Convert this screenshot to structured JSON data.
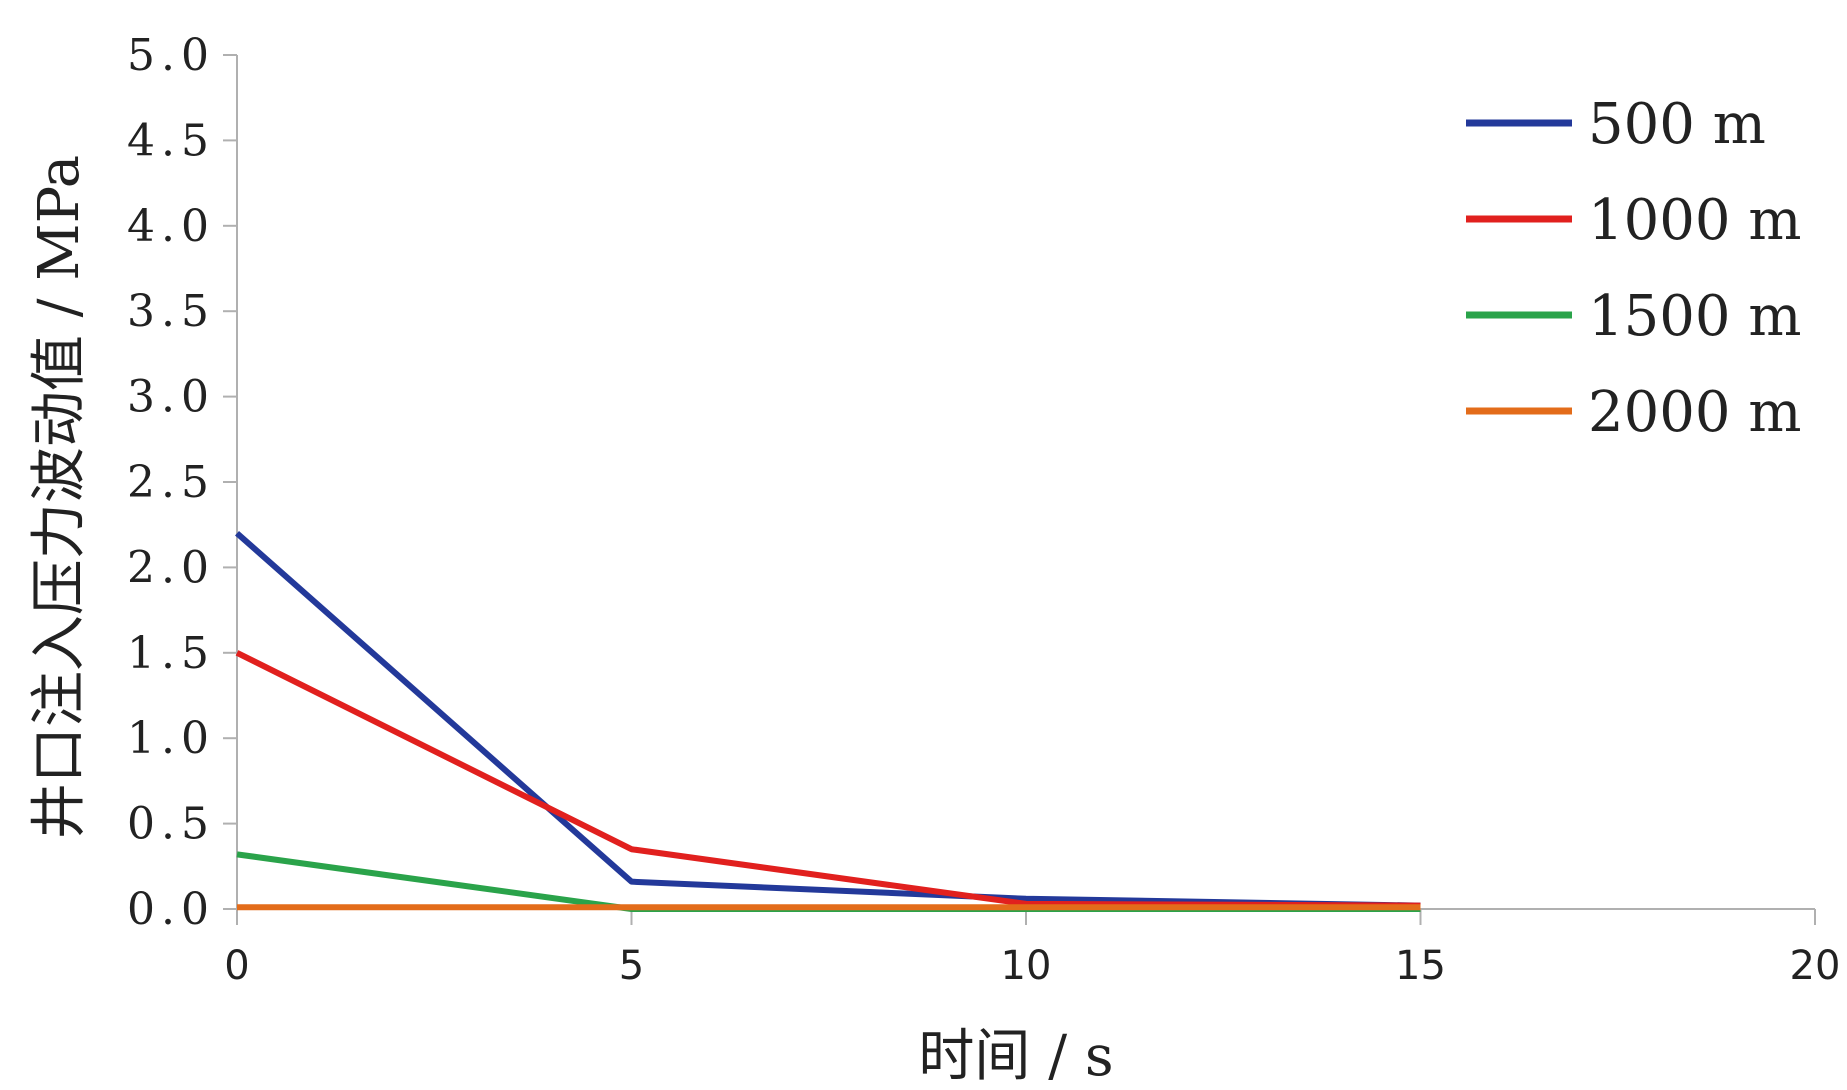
{
  "chart_data": {
    "type": "line",
    "title": "",
    "xlabel": "时间 / s",
    "ylabel": "井口注入压力波动值 / MPa",
    "xlim": [
      0,
      20
    ],
    "ylim": [
      0,
      5
    ],
    "x_ticks": [
      "0",
      "5",
      "10",
      "15",
      "20"
    ],
    "y_ticks": [
      "0.0",
      "0.5",
      "1.0",
      "1.5",
      "2.0",
      "2.5",
      "3.0",
      "3.5",
      "4.0",
      "4.5",
      "5.0"
    ],
    "x": [
      0,
      5,
      10,
      15
    ],
    "grid": false,
    "legend_position": "top-right",
    "series": [
      {
        "name": "500 m",
        "color": "#23399a",
        "values": [
          2.2,
          0.16,
          0.06,
          0.02
        ]
      },
      {
        "name": "1000 m",
        "color": "#e1201e",
        "values": [
          1.5,
          0.35,
          0.03,
          0.02
        ]
      },
      {
        "name": "1500 m",
        "color": "#2aa34a",
        "values": [
          0.32,
          0.0,
          0.0,
          0.0
        ]
      },
      {
        "name": "2000 m",
        "color": "#e36c1a",
        "values": [
          0.01,
          0.01,
          0.01,
          0.01
        ]
      }
    ]
  }
}
